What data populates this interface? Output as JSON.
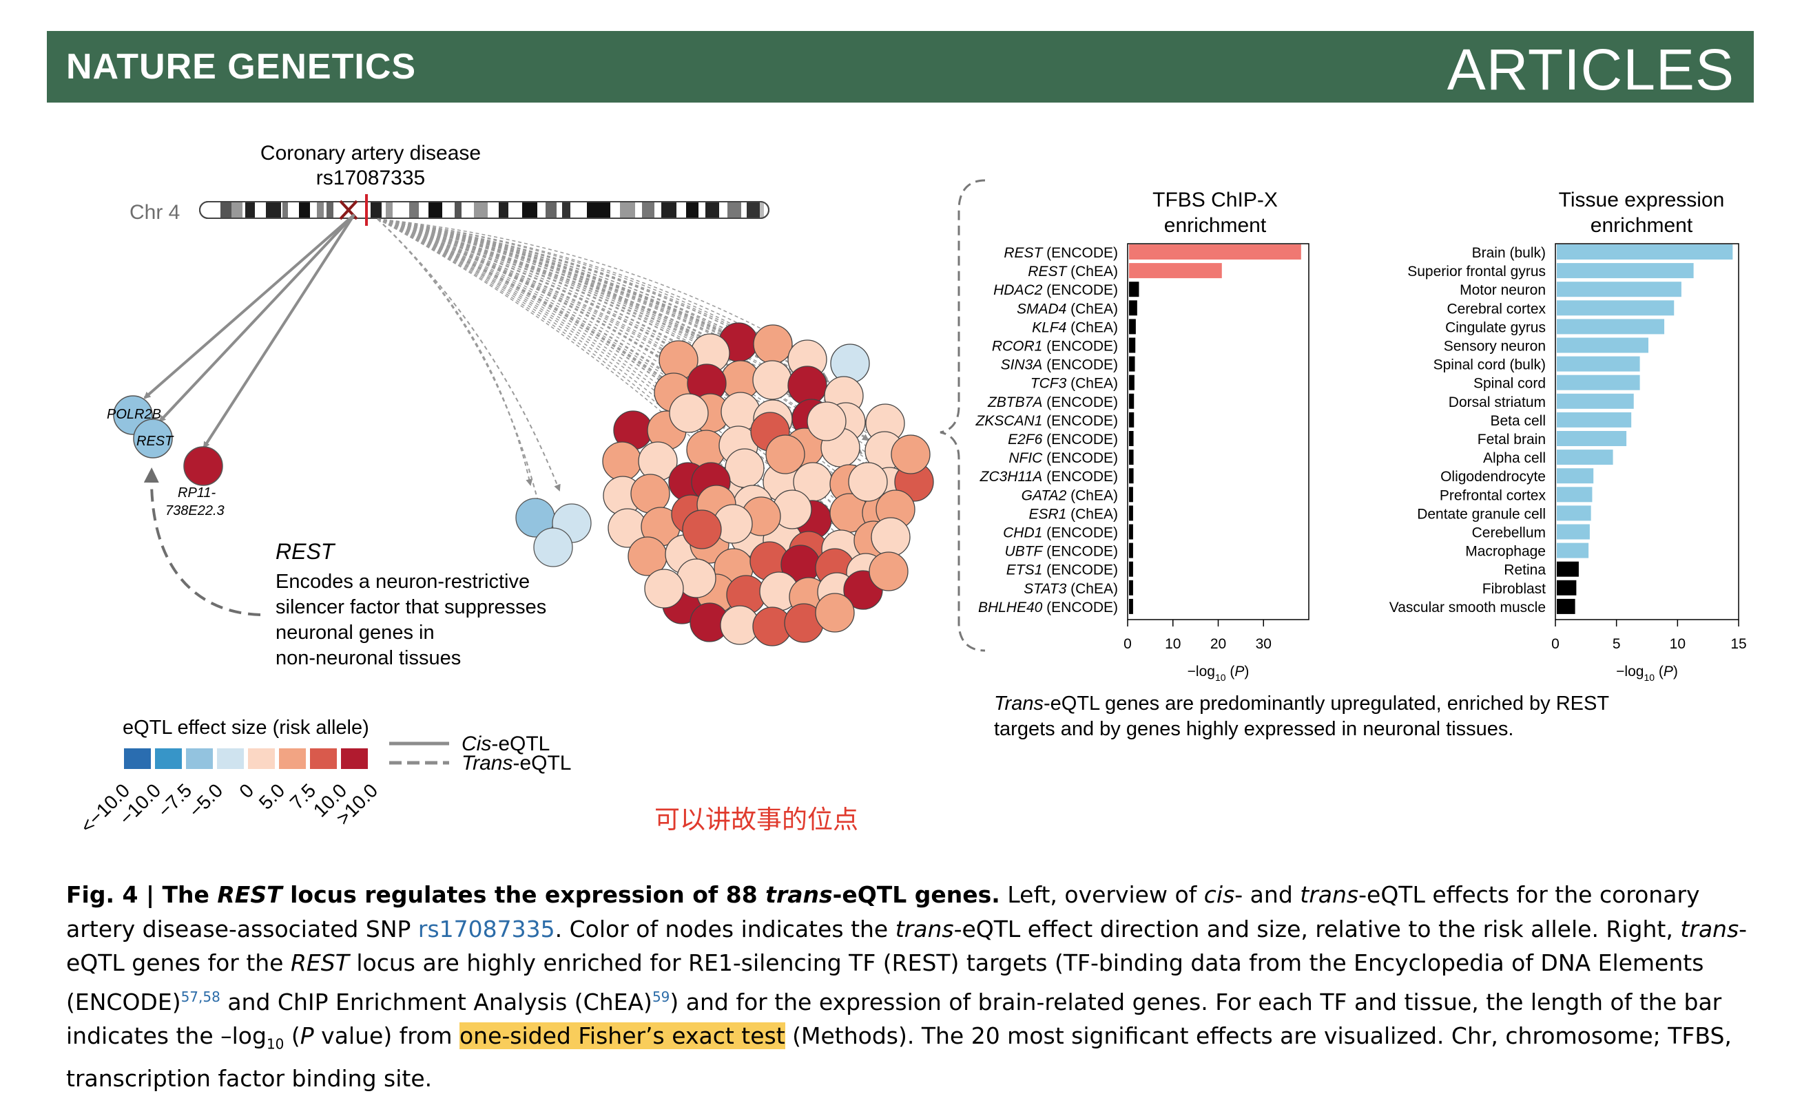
{
  "header": {
    "journal": "NATURE GENETICS",
    "section": "ARTICLES"
  },
  "locus": {
    "disease": "Coronary artery disease",
    "snp": "rs17087335",
    "chromosome": "Chr 4",
    "cis_genes": [
      "POLR2B",
      "REST",
      "RP11-738E22.3"
    ],
    "annotation_title": "REST",
    "annotation_lines": [
      "Encodes a neuron-restrictive",
      "silencer factor that suppresses",
      "neuronal genes in",
      "non-neuronal tissues"
    ]
  },
  "legend": {
    "title": "eQTL effect size (risk allele)",
    "ticks": [
      "<−10.0",
      "−10.0",
      "−7.5",
      "−5.0",
      "0",
      "5.0",
      "7.5",
      "10.0",
      ">10.0"
    ],
    "colors": [
      "#2a6db0",
      "#3795c8",
      "#93c3df",
      "#cfe3ef",
      "#fbd7c4",
      "#f2a483",
      "#d95a4c",
      "#b11b2f"
    ],
    "cis_label": "Cis-eQTL",
    "trans_label": "Trans-eQTL",
    "line_color": "#8c8c8c"
  },
  "annotation_note": "可以讲故事的位点",
  "chart_data": [
    {
      "type": "bar",
      "orientation": "horizontal",
      "title": "TFBS ChIP-X enrichment",
      "xlabel": "−log10 (P)",
      "xlim": [
        0,
        40
      ],
      "xticks": [
        "0",
        "10",
        "20",
        "30"
      ],
      "categories": [
        {
          "tf": "REST",
          "db": "(ENCODE)",
          "value": 38,
          "color": "#f07872"
        },
        {
          "tf": "REST",
          "db": "(ChEA)",
          "value": 20.5,
          "color": "#f07872"
        },
        {
          "tf": "HDAC2",
          "db": "(ENCODE)",
          "value": 2.2,
          "color": "#000000"
        },
        {
          "tf": "SMAD4",
          "db": "(ChEA)",
          "value": 1.8,
          "color": "#000000"
        },
        {
          "tf": "KLF4",
          "db": "(ChEA)",
          "value": 1.5,
          "color": "#000000"
        },
        {
          "tf": "RCOR1",
          "db": "(ENCODE)",
          "value": 1.4,
          "color": "#000000"
        },
        {
          "tf": "SIN3A",
          "db": "(ENCODE)",
          "value": 1.3,
          "color": "#000000"
        },
        {
          "tf": "TCF3",
          "db": "(ChEA)",
          "value": 1.2,
          "color": "#000000"
        },
        {
          "tf": "ZBTB7A",
          "db": "(ENCODE)",
          "value": 1.1,
          "color": "#000000"
        },
        {
          "tf": "ZKSCAN1",
          "db": "(ENCODE)",
          "value": 1.1,
          "color": "#000000"
        },
        {
          "tf": "E2F6",
          "db": "(ENCODE)",
          "value": 1.0,
          "color": "#000000"
        },
        {
          "tf": "NFIC",
          "db": "(ENCODE)",
          "value": 1.0,
          "color": "#000000"
        },
        {
          "tf": "ZC3H11A",
          "db": "(ENCODE)",
          "value": 1.0,
          "color": "#000000"
        },
        {
          "tf": "GATA2",
          "db": "(ChEA)",
          "value": 0.9,
          "color": "#000000"
        },
        {
          "tf": "ESR1",
          "db": "(ChEA)",
          "value": 0.9,
          "color": "#000000"
        },
        {
          "tf": "CHD1",
          "db": "(ENCODE)",
          "value": 0.9,
          "color": "#000000"
        },
        {
          "tf": "UBTF",
          "db": "(ENCODE)",
          "value": 0.9,
          "color": "#000000"
        },
        {
          "tf": "ETS1",
          "db": "(ENCODE)",
          "value": 0.9,
          "color": "#000000"
        },
        {
          "tf": "STAT3",
          "db": "(ChEA)",
          "value": 0.9,
          "color": "#000000"
        },
        {
          "tf": "BHLHE40",
          "db": "(ENCODE)",
          "value": 0.9,
          "color": "#000000"
        }
      ]
    },
    {
      "type": "bar",
      "orientation": "horizontal",
      "title": "Tissue expression enrichment",
      "xlabel": "−log10 (P)",
      "xlim": [
        0,
        15
      ],
      "xticks": [
        "0",
        "5",
        "10",
        "15"
      ],
      "categories": [
        {
          "name": "Brain (bulk)",
          "value": 14.4,
          "color": "#8ec9e2"
        },
        {
          "name": "Superior frontal gyrus",
          "value": 11.2,
          "color": "#8ec9e2"
        },
        {
          "name": "Motor neuron",
          "value": 10.2,
          "color": "#8ec9e2"
        },
        {
          "name": "Cerebral cortex",
          "value": 9.6,
          "color": "#8ec9e2"
        },
        {
          "name": "Cingulate gyrus",
          "value": 8.8,
          "color": "#8ec9e2"
        },
        {
          "name": "Sensory neuron",
          "value": 7.5,
          "color": "#8ec9e2"
        },
        {
          "name": "Spinal cord (bulk)",
          "value": 6.8,
          "color": "#8ec9e2"
        },
        {
          "name": "Spinal cord",
          "value": 6.8,
          "color": "#8ec9e2"
        },
        {
          "name": "Dorsal striatum",
          "value": 6.3,
          "color": "#8ec9e2"
        },
        {
          "name": "Beta cell",
          "value": 6.1,
          "color": "#8ec9e2"
        },
        {
          "name": "Fetal brain",
          "value": 5.7,
          "color": "#8ec9e2"
        },
        {
          "name": "Alpha cell",
          "value": 4.6,
          "color": "#8ec9e2"
        },
        {
          "name": "Oligodendrocyte",
          "value": 3.0,
          "color": "#8ec9e2"
        },
        {
          "name": "Prefrontal cortex",
          "value": 2.9,
          "color": "#8ec9e2"
        },
        {
          "name": "Dentate granule cell",
          "value": 2.8,
          "color": "#8ec9e2"
        },
        {
          "name": "Cerebellum",
          "value": 2.7,
          "color": "#8ec9e2"
        },
        {
          "name": "Macrophage",
          "value": 2.6,
          "color": "#8ec9e2"
        },
        {
          "name": "Retina",
          "value": 1.8,
          "color": "#000000"
        },
        {
          "name": "Fibroblast",
          "value": 1.6,
          "color": "#000000"
        },
        {
          "name": "Vascular smooth muscle",
          "value": 1.5,
          "color": "#000000"
        }
      ]
    }
  ],
  "summary_lines": [
    {
      "italic": "Trans",
      "rest": "-eQTL genes are predominantly upregulated,  enriched by REST"
    },
    {
      "italic": "",
      "rest": "targets and by genes highly expressed in neuronal tissues."
    }
  ],
  "caption": {
    "fig_label": "Fig. 4 | The ",
    "fig_gene": "REST",
    "fig_mid": " locus regulates the expression of 88 ",
    "fig_trans": "trans",
    "fig_end": "-eQTL genes.",
    "t1": " Left, overview of ",
    "t1_cis": "cis",
    "t1_and": "- and ",
    "t1_trans": "trans",
    "t1_end": "-eQTL effects for the coronary artery disease-associated SNP ",
    "snp_link": "rs17087335",
    "t2": ". Color of nodes indicates the ",
    "t2_trans": "trans",
    "t2_end": "-eQTL effect direction and size, relative to the risk allele. Right, ",
    "t3_trans": "trans",
    "t3": "-eQTL genes for the ",
    "t3_rest": "REST",
    "t3_end": " locus are highly enriched for RE1-silencing TF (REST) targets (TF-binding data from the Encyclopedia of DNA Elements (ENCODE)",
    "ref1": "57,58",
    "t4": " and ChIP Enrichment Analysis (ChEA)",
    "ref2": "59",
    "t5": ") and for the expression of brain-related genes. For each TF and tissue, the length of the bar indicates the –log",
    "sub10": "10",
    "t6": " (",
    "t6_p": "P",
    "t6_end": " value) from ",
    "highlight": "one-sided Fisher’s exact test",
    "t7": " (Methods). The 20 most significant effects are visualized. Chr, chromosome; TFBS, transcription factor binding site."
  }
}
